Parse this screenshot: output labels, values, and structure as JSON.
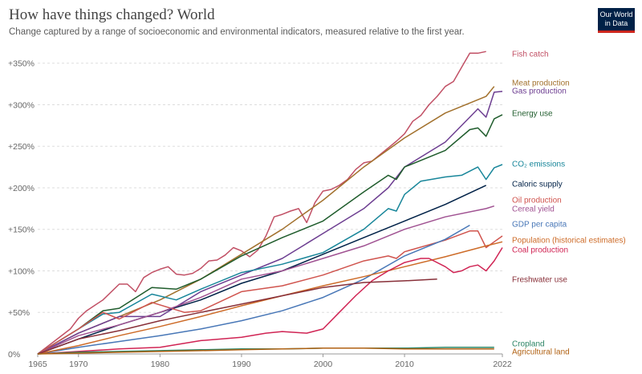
{
  "header": {
    "title": "How have things changed? World",
    "subtitle": "Change captured by a range of socioeconomic and environmental indicators, measured relative to the first year.",
    "logo_line1": "Our World",
    "logo_line2": "in Data"
  },
  "chart_data": {
    "type": "line",
    "title": "How have things changed? World",
    "xlim": [
      1965,
      2022
    ],
    "ylim": [
      0,
      370
    ],
    "x_ticks": [
      1965,
      1970,
      1980,
      1990,
      2000,
      2010,
      2022
    ],
    "y_ticks": [
      {
        "value": 0,
        "label": "0%"
      },
      {
        "value": 50,
        "label": "+50%"
      },
      {
        "value": 100,
        "label": "+100%"
      },
      {
        "value": 150,
        "label": "+150%"
      },
      {
        "value": 200,
        "label": "+200%"
      },
      {
        "value": 250,
        "label": "+250%"
      },
      {
        "value": 300,
        "label": "+300%"
      },
      {
        "value": 350,
        "label": "+350%"
      }
    ],
    "grid": "horizontal",
    "series": [
      {
        "name": "Fish catch",
        "color": "#c15065",
        "points": [
          [
            1965,
            0
          ],
          [
            1967,
            15
          ],
          [
            1969,
            30
          ],
          [
            1970,
            43
          ],
          [
            1971,
            52
          ],
          [
            1973,
            65
          ],
          [
            1975,
            84
          ],
          [
            1976,
            84
          ],
          [
            1977,
            75
          ],
          [
            1978,
            92
          ],
          [
            1979,
            98
          ],
          [
            1980,
            102
          ],
          [
            1981,
            105
          ],
          [
            1982,
            96
          ],
          [
            1983,
            95
          ],
          [
            1984,
            97
          ],
          [
            1985,
            103
          ],
          [
            1986,
            112
          ],
          [
            1987,
            113
          ],
          [
            1988,
            119
          ],
          [
            1989,
            128
          ],
          [
            1990,
            124
          ],
          [
            1991,
            117
          ],
          [
            1992,
            125
          ],
          [
            1993,
            142
          ],
          [
            1994,
            165
          ],
          [
            1995,
            168
          ],
          [
            1996,
            172
          ],
          [
            1997,
            175
          ],
          [
            1998,
            158
          ],
          [
            1999,
            182
          ],
          [
            2000,
            196
          ],
          [
            2001,
            198
          ],
          [
            2002,
            203
          ],
          [
            2003,
            210
          ],
          [
            2004,
            222
          ],
          [
            2005,
            230
          ],
          [
            2006,
            232
          ],
          [
            2007,
            240
          ],
          [
            2008,
            248
          ],
          [
            2009,
            256
          ],
          [
            2010,
            265
          ],
          [
            2011,
            280
          ],
          [
            2012,
            287
          ],
          [
            2013,
            300
          ],
          [
            2014,
            310
          ],
          [
            2015,
            322
          ],
          [
            2016,
            328
          ],
          [
            2017,
            345
          ],
          [
            2018,
            362
          ],
          [
            2019,
            362
          ],
          [
            2020,
            364
          ]
        ]
      },
      {
        "name": "Meat production",
        "color": "#a2712d",
        "points": [
          [
            1965,
            0
          ],
          [
            1970,
            25
          ],
          [
            1975,
            45
          ],
          [
            1980,
            65
          ],
          [
            1985,
            90
          ],
          [
            1990,
            120
          ],
          [
            1995,
            150
          ],
          [
            2000,
            185
          ],
          [
            2005,
            225
          ],
          [
            2010,
            260
          ],
          [
            2015,
            290
          ],
          [
            2020,
            310
          ],
          [
            2021,
            322
          ]
        ]
      },
      {
        "name": "Gas production",
        "color": "#6d3e91",
        "points": [
          [
            1965,
            0
          ],
          [
            1970,
            25
          ],
          [
            1975,
            45
          ],
          [
            1980,
            45
          ],
          [
            1985,
            75
          ],
          [
            1990,
            95
          ],
          [
            1995,
            115
          ],
          [
            2000,
            145
          ],
          [
            2005,
            175
          ],
          [
            2008,
            200
          ],
          [
            2010,
            225
          ],
          [
            2015,
            255
          ],
          [
            2018,
            285
          ],
          [
            2019,
            295
          ],
          [
            2020,
            285
          ],
          [
            2021,
            315
          ],
          [
            2022,
            316
          ]
        ]
      },
      {
        "name": "Energy use",
        "color": "#1f5c2c",
        "points": [
          [
            1965,
            0
          ],
          [
            1970,
            30
          ],
          [
            1973,
            52
          ],
          [
            1975,
            55
          ],
          [
            1979,
            80
          ],
          [
            1982,
            78
          ],
          [
            1985,
            90
          ],
          [
            1990,
            118
          ],
          [
            1995,
            140
          ],
          [
            2000,
            160
          ],
          [
            2005,
            195
          ],
          [
            2008,
            215
          ],
          [
            2009,
            210
          ],
          [
            2010,
            225
          ],
          [
            2015,
            245
          ],
          [
            2018,
            270
          ],
          [
            2019,
            272
          ],
          [
            2020,
            262
          ],
          [
            2021,
            283
          ],
          [
            2022,
            288
          ]
        ]
      },
      {
        "name": "CO₂ emissions",
        "color": "#18869a",
        "points": [
          [
            1965,
            0
          ],
          [
            1970,
            30
          ],
          [
            1973,
            48
          ],
          [
            1975,
            50
          ],
          [
            1979,
            72
          ],
          [
            1982,
            65
          ],
          [
            1985,
            78
          ],
          [
            1990,
            98
          ],
          [
            1995,
            108
          ],
          [
            2000,
            122
          ],
          [
            2005,
            150
          ],
          [
            2008,
            175
          ],
          [
            2009,
            172
          ],
          [
            2010,
            192
          ],
          [
            2012,
            208
          ],
          [
            2015,
            213
          ],
          [
            2017,
            215
          ],
          [
            2019,
            225
          ],
          [
            2020,
            210
          ],
          [
            2021,
            224
          ],
          [
            2022,
            228
          ]
        ]
      },
      {
        "name": "Caloric supply",
        "color": "#002147",
        "points": [
          [
            1965,
            0
          ],
          [
            1970,
            18
          ],
          [
            1975,
            35
          ],
          [
            1980,
            50
          ],
          [
            1985,
            65
          ],
          [
            1990,
            85
          ],
          [
            1995,
            100
          ],
          [
            2000,
            120
          ],
          [
            2005,
            140
          ],
          [
            2010,
            160
          ],
          [
            2015,
            180
          ],
          [
            2020,
            203
          ]
        ]
      },
      {
        "name": "Oil production",
        "color": "#d0544e",
        "points": [
          [
            1965,
            0
          ],
          [
            1970,
            30
          ],
          [
            1973,
            50
          ],
          [
            1975,
            42
          ],
          [
            1979,
            62
          ],
          [
            1983,
            50
          ],
          [
            1985,
            52
          ],
          [
            1990,
            75
          ],
          [
            1995,
            82
          ],
          [
            2000,
            95
          ],
          [
            2005,
            112
          ],
          [
            2008,
            118
          ],
          [
            2009,
            115
          ],
          [
            2010,
            123
          ],
          [
            2015,
            137
          ],
          [
            2018,
            148
          ],
          [
            2019,
            148
          ],
          [
            2020,
            128
          ],
          [
            2021,
            135
          ],
          [
            2022,
            142
          ]
        ]
      },
      {
        "name": "Cereal yield",
        "color": "#a05292",
        "points": [
          [
            1965,
            0
          ],
          [
            1970,
            22
          ],
          [
            1975,
            35
          ],
          [
            1980,
            50
          ],
          [
            1985,
            68
          ],
          [
            1990,
            90
          ],
          [
            1995,
            100
          ],
          [
            2000,
            115
          ],
          [
            2005,
            130
          ],
          [
            2010,
            150
          ],
          [
            2015,
            165
          ],
          [
            2020,
            175
          ],
          [
            2021,
            178
          ]
        ]
      },
      {
        "name": "GDP per capita",
        "color": "#4877b7",
        "points": [
          [
            1965,
            0
          ],
          [
            1970,
            8
          ],
          [
            1975,
            15
          ],
          [
            1980,
            22
          ],
          [
            1985,
            30
          ],
          [
            1990,
            40
          ],
          [
            1995,
            52
          ],
          [
            2000,
            68
          ],
          [
            2005,
            90
          ],
          [
            2010,
            118
          ],
          [
            2015,
            138
          ],
          [
            2018,
            155
          ]
        ]
      },
      {
        "name": "Population (historical estimates)",
        "color": "#cd6b28",
        "points": [
          [
            1965,
            0
          ],
          [
            1970,
            10
          ],
          [
            1975,
            22
          ],
          [
            1980,
            33
          ],
          [
            1985,
            45
          ],
          [
            1990,
            58
          ],
          [
            1995,
            70
          ],
          [
            2000,
            82
          ],
          [
            2005,
            93
          ],
          [
            2010,
            105
          ],
          [
            2015,
            117
          ],
          [
            2020,
            130
          ],
          [
            2022,
            135
          ]
        ]
      },
      {
        "name": "Coal production",
        "color": "#d02454",
        "points": [
          [
            1965,
            0
          ],
          [
            1970,
            3
          ],
          [
            1975,
            6
          ],
          [
            1980,
            8
          ],
          [
            1985,
            16
          ],
          [
            1990,
            20
          ],
          [
            1993,
            25
          ],
          [
            1995,
            27
          ],
          [
            1998,
            25
          ],
          [
            2000,
            30
          ],
          [
            2002,
            50
          ],
          [
            2004,
            70
          ],
          [
            2006,
            88
          ],
          [
            2008,
            100
          ],
          [
            2010,
            110
          ],
          [
            2012,
            115
          ],
          [
            2013,
            115
          ],
          [
            2015,
            105
          ],
          [
            2016,
            98
          ],
          [
            2017,
            100
          ],
          [
            2018,
            105
          ],
          [
            2019,
            107
          ],
          [
            2020,
            100
          ],
          [
            2021,
            112
          ],
          [
            2022,
            128
          ]
        ]
      },
      {
        "name": "Freshwater use",
        "color": "#883039",
        "points": [
          [
            1965,
            0
          ],
          [
            1970,
            18
          ],
          [
            1975,
            28
          ],
          [
            1980,
            40
          ],
          [
            1985,
            50
          ],
          [
            1990,
            60
          ],
          [
            1995,
            70
          ],
          [
            2000,
            80
          ],
          [
            2005,
            86
          ],
          [
            2010,
            88
          ],
          [
            2014,
            90
          ]
        ]
      },
      {
        "name": "Cropland",
        "color": "#2b8465",
        "points": [
          [
            1965,
            0
          ],
          [
            1970,
            2
          ],
          [
            1975,
            3
          ],
          [
            1980,
            4
          ],
          [
            1985,
            5
          ],
          [
            1990,
            6
          ],
          [
            1995,
            6
          ],
          [
            2000,
            7
          ],
          [
            2005,
            7
          ],
          [
            2010,
            7
          ],
          [
            2015,
            8
          ],
          [
            2020,
            8
          ],
          [
            2021,
            8
          ]
        ]
      },
      {
        "name": "Agricultural land",
        "color": "#b16214",
        "points": [
          [
            1965,
            0
          ],
          [
            1970,
            1
          ],
          [
            1975,
            2
          ],
          [
            1980,
            3
          ],
          [
            1985,
            4
          ],
          [
            1990,
            5
          ],
          [
            1995,
            6
          ],
          [
            2000,
            7
          ],
          [
            2005,
            7
          ],
          [
            2010,
            6
          ],
          [
            2015,
            6
          ],
          [
            2020,
            6
          ],
          [
            2021,
            6
          ]
        ]
      }
    ],
    "legend_placement": "right"
  }
}
